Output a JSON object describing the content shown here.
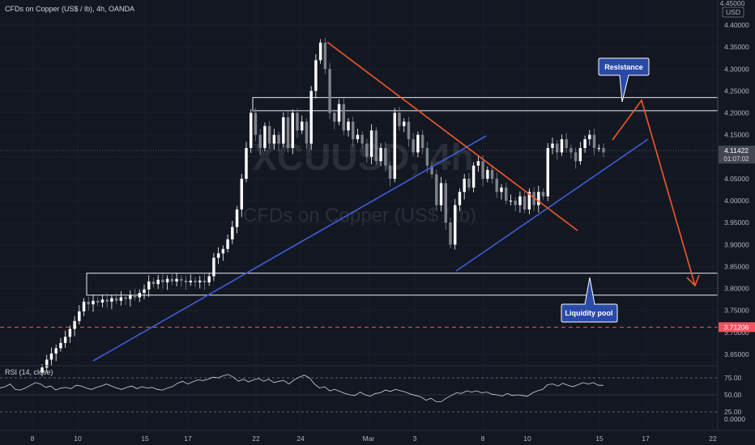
{
  "header": {
    "title": "CFDs on Copper (US$ / lb), 4h, OANDA"
  },
  "watermark": {
    "symbol": "XCUUSD, 4h",
    "description": "CFDs on Copper (US$ / lb)"
  },
  "currency_badge": "USD",
  "price_axis_top_label": "4.45000",
  "current_price": {
    "value": "4.11422",
    "countdown": "01:07:02",
    "color": "#434651"
  },
  "target_price": {
    "value": "3.71206",
    "color": "#f7525f"
  },
  "rsi_panel": {
    "title": "RSI (14, close)",
    "ticks": [
      "75.00",
      "50.00",
      "25.00",
      "0.0000"
    ]
  },
  "annotations": {
    "resistance_label": "Resistance",
    "liquidity_label": "Liquidity pool"
  },
  "colors": {
    "background": "#131722",
    "bull_candle": "#ffffff",
    "bear_candle": "#7f8289",
    "trendline_blue": "#3d5fd6",
    "trendline_red": "#f0592a",
    "zone_border": "#c7c9cf",
    "callout_fill": "#2a4aa8"
  },
  "chart_data": {
    "type": "candlestick",
    "title": "",
    "x_tick_labels": [
      "8",
      "10",
      "15",
      "17",
      "22",
      "24",
      "Mar",
      "3",
      "8",
      "10",
      "15",
      "17",
      "22"
    ],
    "price_ticks": [
      "4.40000",
      "4.35000",
      "4.30000",
      "4.25000",
      "4.20000",
      "4.15000",
      "4.10000",
      "4.05000",
      "4.00000",
      "3.95000",
      "3.90000",
      "3.85000",
      "3.80000",
      "3.75000",
      "3.70000",
      "3.65000"
    ],
    "ylim": [
      3.63,
      4.44
    ],
    "series": [
      {
        "close": [
          3.62,
          3.638,
          3.652,
          3.664,
          3.676,
          3.69,
          3.708,
          3.726,
          3.748,
          3.77,
          3.764,
          3.772,
          3.768,
          3.775,
          3.77,
          3.778,
          3.772,
          3.78,
          3.776,
          3.785,
          3.78,
          3.79,
          3.798,
          3.816,
          3.81,
          3.82,
          3.814,
          3.822,
          3.816,
          3.822,
          3.818,
          3.814,
          3.818,
          3.814,
          3.818,
          3.814,
          3.828,
          3.87,
          3.88,
          3.89,
          3.912,
          3.94,
          3.98,
          4.05,
          4.12,
          4.2,
          4.15,
          4.12,
          4.17,
          4.13,
          4.15,
          4.13,
          4.19,
          4.12,
          4.2,
          4.16,
          4.18,
          4.13,
          4.25,
          4.32,
          4.36,
          4.3,
          4.2,
          4.18,
          4.22,
          4.16,
          4.18,
          4.14,
          4.15,
          4.13,
          4.1,
          4.16,
          4.09,
          4.12,
          4.08,
          4.05,
          4.2,
          4.17,
          4.18,
          4.14,
          4.11,
          4.15,
          4.12,
          4.08,
          4.06,
          3.99,
          4.04,
          3.95,
          3.9,
          3.99,
          4.02,
          4.05,
          4.03,
          4.08,
          4.09,
          4.05,
          4.07,
          4.05,
          4.02,
          4.03,
          4.0,
          4.0,
          3.99,
          4.01,
          3.98,
          4.02,
          3.99,
          4.02,
          4.01,
          4.12,
          4.13,
          4.11,
          4.14,
          4.12,
          4.11,
          4.09,
          4.12,
          4.14,
          4.15,
          4.12,
          4.12,
          4.11
        ],
        "labels": [],
        "name": ""
      }
    ],
    "zones": [
      {
        "label": "Resistance",
        "low": 4.205,
        "high": 4.235
      },
      {
        "label": "Liquidity pool",
        "low": 3.785,
        "high": 3.835
      }
    ],
    "target_level": 3.71206,
    "rsi": {
      "ylim": [
        0,
        100
      ],
      "bands": [
        75,
        50,
        25
      ],
      "values": [
        60,
        62,
        66,
        58,
        57,
        60,
        64,
        68,
        66,
        61,
        63,
        57,
        60,
        61,
        59,
        64,
        63,
        60,
        58,
        61,
        63,
        66,
        63,
        60,
        58,
        61,
        63,
        59,
        62,
        60,
        61,
        58,
        57,
        60,
        62,
        67,
        70,
        66,
        69,
        72,
        71,
        73,
        76,
        75,
        78,
        80,
        76,
        70,
        73,
        69,
        72,
        74,
        70,
        73,
        68,
        70,
        71,
        66,
        72,
        76,
        79,
        75,
        66,
        60,
        62,
        56,
        58,
        55,
        52,
        50,
        49,
        54,
        50,
        48,
        52,
        53,
        57,
        55,
        58,
        56,
        54,
        51,
        49,
        47,
        42,
        45,
        40,
        40,
        45,
        49,
        53,
        52,
        56,
        54,
        56,
        53,
        54,
        51,
        50,
        48,
        52,
        49,
        50,
        49,
        48,
        53,
        56,
        58,
        65,
        66,
        63,
        67,
        64,
        62,
        65,
        68,
        66,
        68,
        64,
        64
      ]
    }
  }
}
